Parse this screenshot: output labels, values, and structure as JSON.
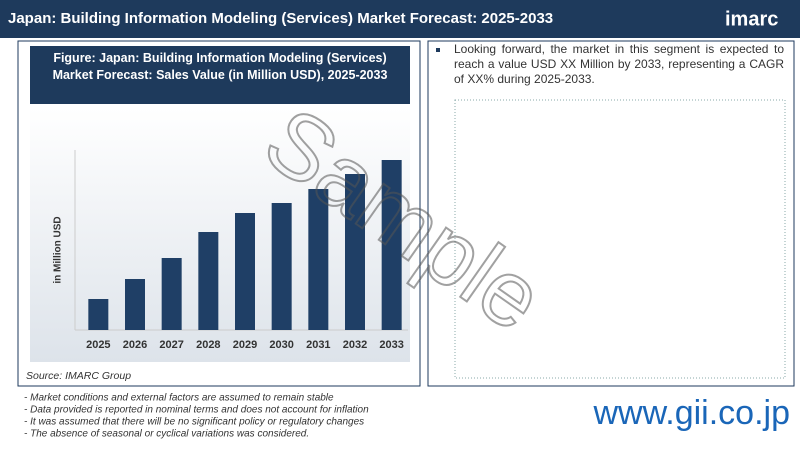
{
  "header": {
    "title": "Japan: Building Information Modeling (Services) Market Forecast: 2025-2033",
    "logo": "imarc"
  },
  "chart_data": {
    "type": "bar",
    "title": "Figure: Japan: Building Information Modeling (Services) Market Forecast: Sales Value (in Million USD), 2025-2033",
    "y_label": "in Million USD",
    "categories": [
      "2025",
      "2026",
      "2027",
      "2028",
      "2029",
      "2030",
      "2031",
      "2032",
      "2033"
    ],
    "values": [
      31,
      51,
      72,
      98,
      117,
      127,
      141,
      156,
      170
    ],
    "color": "#1f3f66",
    "ylim": [
      0,
      180
    ],
    "source": "Source: IMARC Group"
  },
  "summary": "Looking forward, the market in this segment is expected to reach a value USD XX Million by 2033, representing a CAGR of XX% during 2025-2033.",
  "notes": [
    "- Market conditions and external factors are assumed to remain stable",
    "- Data provided is reported in nominal terms and does not account for inflation",
    "- It was assumed that there will be no significant policy or regulatory changes",
    "- The absence of seasonal or cyclical variations was considered."
  ],
  "watermark": "Sample",
  "website": "www.gii.co.jp"
}
